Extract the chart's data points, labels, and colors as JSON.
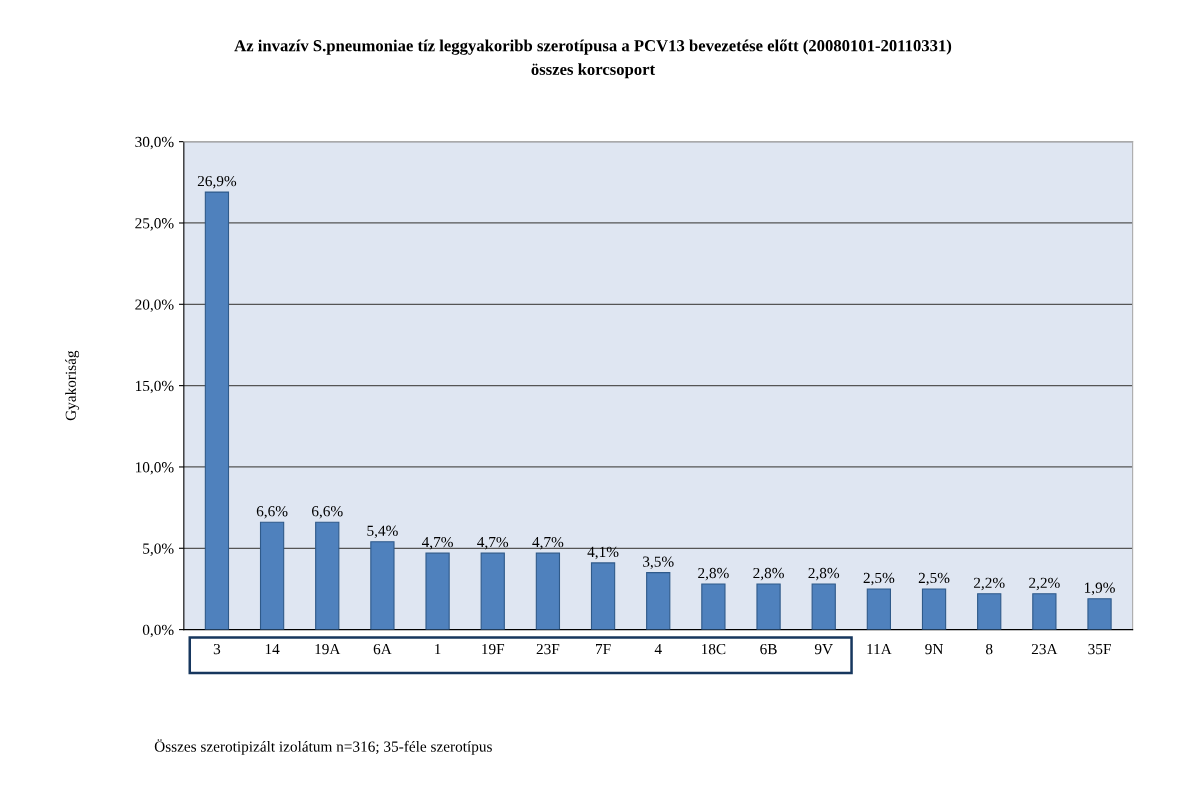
{
  "chart_data": {
    "type": "bar",
    "title": "Az invazív S.pneumoniae tíz leggyakoribb szerotípusa a PCV13 bevezetése előtt (20080101-20110331)",
    "subtitle": "összes korcsoport",
    "ylabel": "Gyakoriság",
    "categories": [
      "3",
      "14",
      "19A",
      "6A",
      "1",
      "19F",
      "23F",
      "7F",
      "4",
      "18C",
      "6B",
      "9V",
      "11A",
      "9N",
      "8",
      "23A",
      "35F"
    ],
    "values": [
      26.9,
      6.6,
      6.6,
      5.4,
      4.7,
      4.7,
      4.7,
      4.1,
      3.5,
      2.8,
      2.8,
      2.8,
      2.5,
      2.5,
      2.2,
      2.2,
      1.9
    ],
    "value_labels": [
      "26,9%",
      "6,6%",
      "6,6%",
      "5,4%",
      "4,7%",
      "4,7%",
      "4,7%",
      "4,1%",
      "3,5%",
      "2,8%",
      "2,8%",
      "2,8%",
      "2,5%",
      "2,5%",
      "2,2%",
      "2,2%",
      "1,9%"
    ],
    "color": "#4f81bd",
    "ylim": [
      0,
      30
    ],
    "yticks": [
      {
        "value": 0,
        "label": "0,0%"
      },
      {
        "value": 5,
        "label": "5,0%"
      },
      {
        "value": 10,
        "label": "10,0%"
      },
      {
        "value": 15,
        "label": "15,0%"
      },
      {
        "value": 20,
        "label": "20,0%"
      },
      {
        "value": 25,
        "label": "25,0%"
      },
      {
        "value": 30,
        "label": "30,0%"
      }
    ],
    "grid": "y",
    "annotations": [
      "Összes szerotipizált izolátum n=316; 35-féle szerotípus"
    ]
  }
}
